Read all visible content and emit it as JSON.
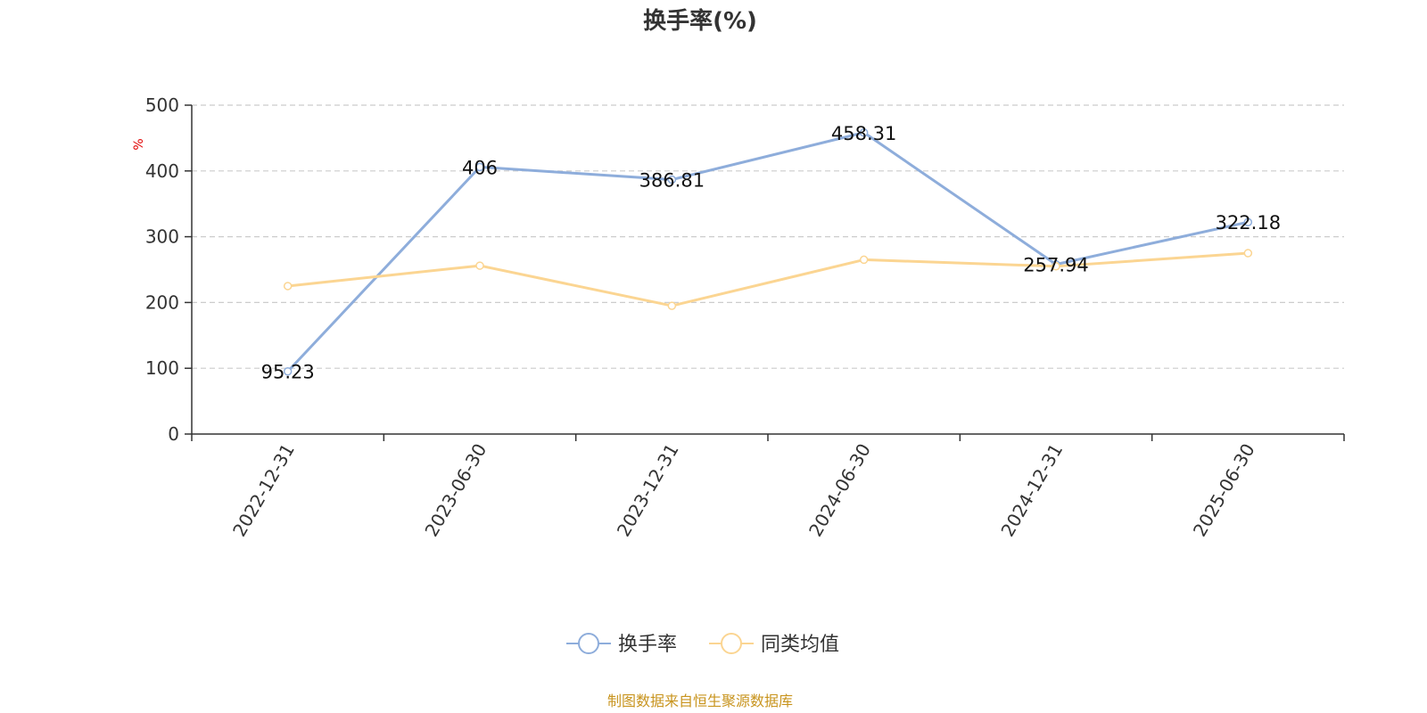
{
  "chart_data": {
    "type": "line",
    "title": "换手率(%)",
    "ylabel": "%",
    "categories": [
      "2022-12-31",
      "2023-06-30",
      "2023-12-31",
      "2024-06-30",
      "2024-12-31",
      "2025-06-30"
    ],
    "ylim": [
      0,
      500
    ],
    "yticks": [
      0,
      100,
      200,
      300,
      400,
      500
    ],
    "grid": true,
    "legend_position": "bottom",
    "series": [
      {
        "name": "换手率",
        "values": [
          95.23,
          406,
          386.81,
          458.31,
          257.94,
          322.18
        ],
        "color": "#8eaddb",
        "show_labels": true
      },
      {
        "name": "同类均值",
        "values": [
          225,
          256,
          195,
          265,
          255,
          275
        ],
        "color": "#fbd592",
        "show_labels": false
      }
    ]
  },
  "source_text": "制图数据来自恒生聚源数据库",
  "colors": {
    "source": "#c8941e",
    "axis": "#333333",
    "grid": "#cccccc",
    "unit": "#e00000"
  }
}
